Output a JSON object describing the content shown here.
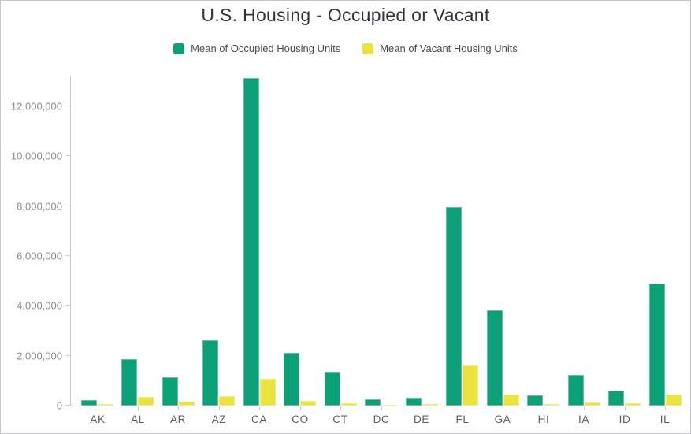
{
  "chart_data": {
    "type": "bar",
    "title": "U.S. Housing - Occupied or Vacant",
    "xlabel": "",
    "ylabel": "",
    "categories": [
      "AK",
      "AL",
      "AR",
      "AZ",
      "CA",
      "CO",
      "CT",
      "DC",
      "DE",
      "FL",
      "GA",
      "HI",
      "IA",
      "ID",
      "IL"
    ],
    "series": [
      {
        "name": "Mean of Occupied Housing Units",
        "color": "#0ca078",
        "values": [
          220000,
          1870000,
          1130000,
          2610000,
          13150000,
          2130000,
          1360000,
          260000,
          330000,
          7950000,
          3830000,
          420000,
          1220000,
          610000,
          4890000
        ]
      },
      {
        "name": "Mean of Vacant Housing Units",
        "color": "#ece23e",
        "values": [
          60000,
          360000,
          170000,
          370000,
          1070000,
          180000,
          110000,
          30000,
          60000,
          1620000,
          450000,
          60000,
          120000,
          90000,
          440000
        ]
      }
    ],
    "ylim": [
      0,
      13400000
    ],
    "yticks": [
      {
        "value": 0,
        "label": "0"
      },
      {
        "value": 2000000,
        "label": "2,000,000"
      },
      {
        "value": 4000000,
        "label": "4,000,000"
      },
      {
        "value": 6000000,
        "label": "6,000,000"
      },
      {
        "value": 8000000,
        "label": "8,000,000"
      },
      {
        "value": 10000000,
        "label": "10,000,000"
      },
      {
        "value": 12000000,
        "label": "12,000,000"
      }
    ],
    "grid": false,
    "legend_position": "top"
  },
  "styles": {
    "axis_color": "#c9c9cd",
    "y_label_color": "#8d8d93",
    "x_label_color": "#5d5d65",
    "title_color": "#34343c",
    "legend_text_color": "#4b4b54",
    "background": "#ffffff",
    "frame_border": "#c6c6ca"
  }
}
